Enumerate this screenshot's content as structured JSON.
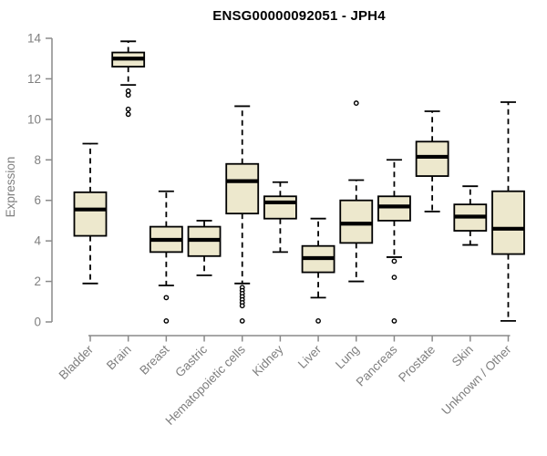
{
  "chart_data": {
    "type": "boxplot",
    "title": "ENSG00000092051 - JPH4",
    "xlabel": "",
    "ylabel": "Expression",
    "ylim": [
      0,
      14
    ],
    "yticks": [
      0,
      2,
      4,
      6,
      8,
      10,
      12,
      14
    ],
    "grid": false,
    "legend": "none",
    "categories": [
      "Bladder",
      "Brain",
      "Breast",
      "Gastric",
      "Hematopoietic cells",
      "Kidney",
      "Liver",
      "Lung",
      "Pancreas",
      "Prostate",
      "Skin",
      "Unknown / Other"
    ],
    "boxes": [
      {
        "category": "Bladder",
        "slug": "bladder",
        "whisker_low": 1.9,
        "q1": 4.25,
        "median": 5.55,
        "q3": 6.4,
        "whisker_high": 8.8,
        "outliers": []
      },
      {
        "category": "Brain",
        "slug": "brain",
        "whisker_low": 11.7,
        "q1": 12.6,
        "median": 13.0,
        "q3": 13.3,
        "whisker_high": 13.85,
        "outliers": [
          11.4,
          11.2,
          10.5,
          10.25
        ]
      },
      {
        "category": "Breast",
        "slug": "breast",
        "whisker_low": 1.8,
        "q1": 3.45,
        "median": 4.05,
        "q3": 4.7,
        "whisker_high": 6.45,
        "outliers": [
          1.2,
          0.05
        ]
      },
      {
        "category": "Gastric",
        "slug": "gastric",
        "whisker_low": 2.3,
        "q1": 3.25,
        "median": 4.05,
        "q3": 4.7,
        "whisker_high": 5.0,
        "outliers": []
      },
      {
        "category": "Hematopoietic cells",
        "slug": "hematopoietic-cells",
        "whisker_low": 1.9,
        "q1": 5.35,
        "median": 6.95,
        "q3": 7.8,
        "whisker_high": 10.65,
        "outliers": [
          1.7,
          1.55,
          1.4,
          1.25,
          1.1,
          0.95,
          0.8,
          0.05
        ]
      },
      {
        "category": "Kidney",
        "slug": "kidney",
        "whisker_low": 3.45,
        "q1": 5.1,
        "median": 5.9,
        "q3": 6.2,
        "whisker_high": 6.9,
        "outliers": []
      },
      {
        "category": "Liver",
        "slug": "liver",
        "whisker_low": 1.2,
        "q1": 2.45,
        "median": 3.15,
        "q3": 3.75,
        "whisker_high": 5.1,
        "outliers": [
          0.05
        ]
      },
      {
        "category": "Lung",
        "slug": "lung",
        "whisker_low": 2.0,
        "q1": 3.9,
        "median": 4.85,
        "q3": 6.0,
        "whisker_high": 7.0,
        "outliers": [
          10.8
        ]
      },
      {
        "category": "Pancreas",
        "slug": "pancreas",
        "whisker_low": 3.2,
        "q1": 5.0,
        "median": 5.7,
        "q3": 6.2,
        "whisker_high": 8.0,
        "outliers": [
          3.0,
          2.2,
          0.05
        ]
      },
      {
        "category": "Prostate",
        "slug": "prostate",
        "whisker_low": 5.45,
        "q1": 7.2,
        "median": 8.15,
        "q3": 8.9,
        "whisker_high": 10.4,
        "outliers": []
      },
      {
        "category": "Skin",
        "slug": "skin",
        "whisker_low": 3.8,
        "q1": 4.5,
        "median": 5.2,
        "q3": 5.8,
        "whisker_high": 6.7,
        "outliers": []
      },
      {
        "category": "Unknown / Other",
        "slug": "unknown-other",
        "whisker_low": 0.05,
        "q1": 3.35,
        "median": 4.6,
        "q3": 6.45,
        "whisker_high": 10.85,
        "outliers": []
      }
    ],
    "colors": {
      "box_fill": "#ede8cd",
      "box_stroke": "#000000",
      "median": "#000000",
      "axis": "#8a8a8a",
      "tick_text": "#7f7f7f",
      "title_text": "#000000",
      "background": "#ffffff"
    }
  }
}
